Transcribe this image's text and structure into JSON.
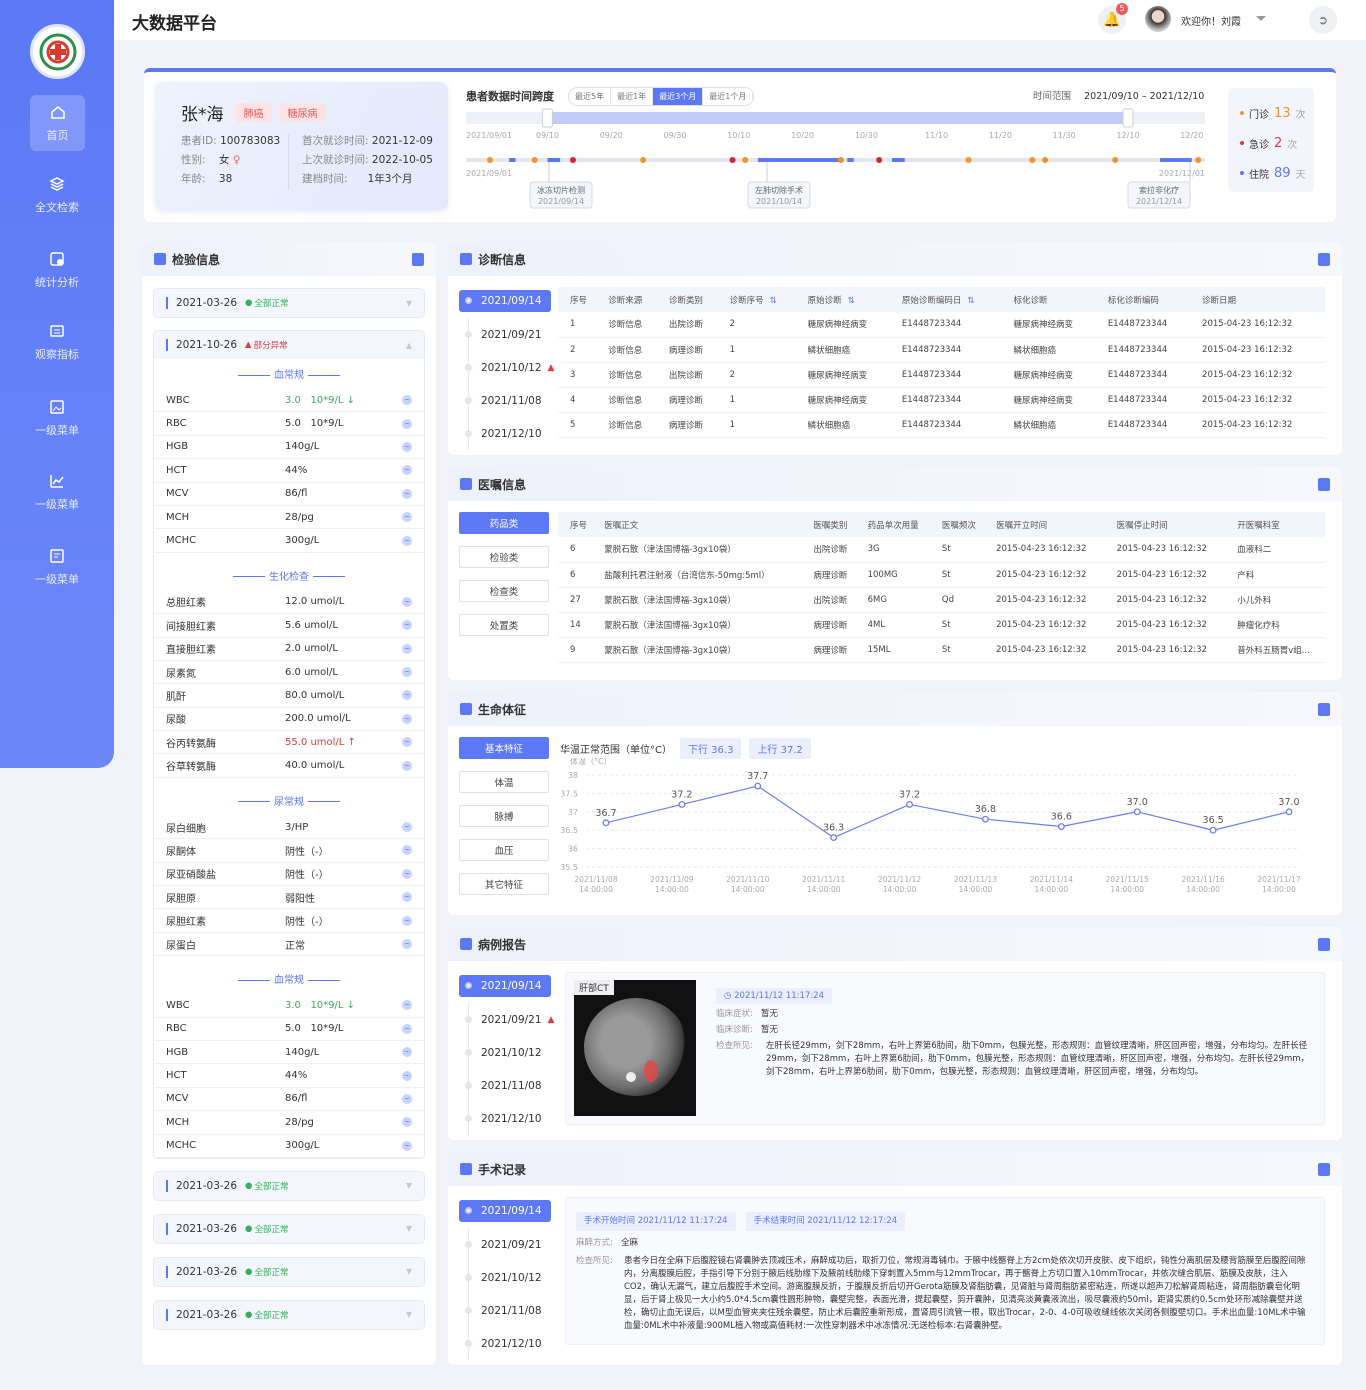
{
  "app": {
    "title": "大数据平台"
  },
  "header": {
    "notif_count": "5",
    "welcome": "欢迎你！刘霞"
  },
  "sidebar": {
    "items": [
      {
        "label": "首页",
        "icon": "home-icon"
      },
      {
        "label": "全文检索",
        "icon": "layers-icon"
      },
      {
        "label": "统计分析",
        "icon": "analysis-icon"
      },
      {
        "label": "观察指标",
        "icon": "monitor-icon"
      },
      {
        "label": "一级菜单",
        "icon": "image-icon"
      },
      {
        "label": "一级菜单",
        "icon": "chart-icon"
      },
      {
        "label": "一级菜单",
        "icon": "report-icon"
      }
    ]
  },
  "patient": {
    "name": "张*海",
    "tags": [
      "肺癌",
      "糖尿病"
    ],
    "id_label": "患者ID:",
    "id": "100783083",
    "gender_label": "性别:",
    "gender": "女",
    "age_label": "年龄:",
    "age": "38",
    "first_label": "首次就诊时间:",
    "first": "2021-12-09",
    "last_label": "上次就诊时间:",
    "last": "2022-10-05",
    "file_label": "建档时间:",
    "file": "1年3个月"
  },
  "timespan": {
    "title": "患者数据时间跨度",
    "ranges": [
      "最近5年",
      "最近1年",
      "最近3个月",
      "最近1个月"
    ],
    "active_range": 2,
    "range_label": "时间范围",
    "range_value": "2021/09/10 – 2021/12/10",
    "ticks": [
      "2021/09/01",
      "09/10",
      "09/20",
      "09/30",
      "10/10",
      "10/20",
      "10/30",
      "11/10",
      "11/20",
      "11/30",
      "12/10",
      "12/20"
    ],
    "start_label": "2021/09/01",
    "end_label": "2021/12/01",
    "events": [
      {
        "type": "outpatient",
        "date": "09/01"
      },
      {
        "type": "inpatient",
        "date": "09/04",
        "end": "09/05"
      },
      {
        "type": "outpatient",
        "date": "09/08"
      },
      {
        "type": "inpatient",
        "date": "09/10",
        "end": "09/12"
      },
      {
        "type": "emergency",
        "date": "09/14"
      },
      {
        "type": "outpatient",
        "date": "09/25"
      },
      {
        "type": "emergency",
        "date": "10/09"
      },
      {
        "type": "outpatient",
        "date": "10/11"
      },
      {
        "type": "inpatient",
        "date": "10/13",
        "end": "10/26"
      },
      {
        "type": "outpatient",
        "date": "10/26"
      },
      {
        "type": "inpatient",
        "date": "10/27",
        "end": "10/28"
      },
      {
        "type": "emergency",
        "date": "11/01"
      },
      {
        "type": "inpatient",
        "date": "11/03",
        "end": "11/05"
      },
      {
        "type": "outpatient",
        "date": "11/15"
      },
      {
        "type": "outpatient",
        "date": "11/25"
      },
      {
        "type": "outpatient",
        "date": "11/27"
      },
      {
        "type": "outpatient",
        "date": "12/08"
      },
      {
        "type": "inpatient",
        "date": "12/15",
        "end": "12/20"
      },
      {
        "type": "outpatient",
        "date": "12/21"
      }
    ],
    "callouts": [
      {
        "title": "冰冻切片检测",
        "date": "2021/09/14"
      },
      {
        "title": "左肺切除手术",
        "date": "2021/10/14"
      },
      {
        "title": "索拉非化疗",
        "date": "2021/12/14"
      }
    ],
    "colors": {
      "outpatient": "#f5922f",
      "emergency": "#d9232d",
      "inpatient": "#5c78f5"
    }
  },
  "stats": [
    {
      "label": "门诊",
      "value": "13",
      "unit": "次",
      "color": "#f5922f"
    },
    {
      "label": "急诊",
      "value": "2",
      "unit": "次",
      "color": "#e0393e"
    },
    {
      "label": "住院",
      "value": "89",
      "unit": "天",
      "color": "#5c78f5"
    }
  ],
  "lab": {
    "title": "检验信息",
    "groups_top": [
      {
        "date": "2021-03-26",
        "status": "全部正常"
      }
    ],
    "expanded": {
      "date": "2021-10-26",
      "status": "部分异常",
      "sections": [
        {
          "name": "血常规",
          "rows": [
            [
              "WBC",
              "3.0   10*9/L",
              "down"
            ],
            [
              "RBC",
              "5.0   10*9/L",
              ""
            ],
            [
              "HGB",
              "140g/L",
              ""
            ],
            [
              "HCT",
              "44%",
              ""
            ],
            [
              "MCV",
              "86/fl",
              ""
            ],
            [
              "MCH",
              "28/pg",
              ""
            ],
            [
              "MCHC",
              "300g/L",
              ""
            ]
          ]
        },
        {
          "name": "生化检查",
          "rows": [
            [
              "总胆红素",
              "12.0 umol/L",
              ""
            ],
            [
              "间接胆红素",
              "5.6 umol/L",
              ""
            ],
            [
              "直接胆红素",
              "2.0 umol/L",
              ""
            ],
            [
              "尿素氮",
              "6.0 umol/L",
              ""
            ],
            [
              "肌酐",
              "80.0 umol/L",
              ""
            ],
            [
              "尿酸",
              "200.0 umol/L",
              ""
            ],
            [
              "谷丙转氨酶",
              "55.0 umol/L",
              "up"
            ],
            [
              "谷草转氨酶",
              "40.0 umol/L",
              ""
            ]
          ]
        },
        {
          "name": "尿常规",
          "rows": [
            [
              "尿白细胞",
              "3/HP",
              ""
            ],
            [
              "尿酮体",
              "阴性（-）",
              ""
            ],
            [
              "尿亚硝酸盐",
              "阴性（-）",
              ""
            ],
            [
              "尿胆原",
              "弱阳性",
              ""
            ],
            [
              "尿胆红素",
              "阴性（-）",
              ""
            ],
            [
              "尿蛋白",
              "正常",
              ""
            ]
          ]
        },
        {
          "name": "血常规",
          "rows": [
            [
              "WBC",
              "3.0   10*9/L",
              "down"
            ],
            [
              "RBC",
              "5.0   10*9/L",
              ""
            ],
            [
              "HGB",
              "140g/L",
              ""
            ],
            [
              "HCT",
              "44%",
              ""
            ],
            [
              "MCV",
              "86/fl",
              ""
            ],
            [
              "MCH",
              "28/pg",
              ""
            ],
            [
              "MCHC",
              "300g/L",
              ""
            ]
          ]
        }
      ]
    },
    "groups_bottom": [
      {
        "date": "2021-03-26",
        "status": "全部正常"
      },
      {
        "date": "2021-03-26",
        "status": "全部正常"
      },
      {
        "date": "2021-03-26",
        "status": "全部正常"
      },
      {
        "date": "2021-03-26",
        "status": "全部正常"
      }
    ]
  },
  "diagnosis": {
    "title": "诊断信息",
    "dates": [
      "2021/09/14",
      "2021/09/21",
      "2021/10/12",
      "2021/11/08",
      "2021/12/10"
    ],
    "warn_index": 2,
    "columns": [
      "序号",
      "诊断来源",
      "诊断类别",
      "诊断序号",
      "原始诊断",
      "原始诊断编码日",
      "标化诊断",
      "标化诊断编码",
      "诊断日期"
    ],
    "rows": [
      [
        "1",
        "诊断信息",
        "出院诊断",
        "2",
        "糖尿病神经病变",
        "E1448723344",
        "糖尿病神经病变",
        "E1448723344",
        "2015-04-23  16:12:32"
      ],
      [
        "2",
        "诊断信息",
        "病理诊断",
        "1",
        "鳞状细胞癌",
        "E1448723344",
        "鳞状细胞癌",
        "E1448723344",
        "2015-04-23  16:12:32"
      ],
      [
        "3",
        "诊断信息",
        "出院诊断",
        "2",
        "糖尿病神经病变",
        "E1448723344",
        "糖尿病神经病变",
        "E1448723344",
        "2015-04-23  16:12:32"
      ],
      [
        "4",
        "诊断信息",
        "病理诊断",
        "1",
        "糖尿病神经病变",
        "E1448723344",
        "糖尿病神经病变",
        "E1448723344",
        "2015-04-23  16:12:32"
      ],
      [
        "5",
        "诊断信息",
        "病理诊断",
        "1",
        "鳞状细胞癌",
        "E1448723344",
        "鳞状细胞癌",
        "E1448723344",
        "2015-04-23  16:12:32"
      ]
    ]
  },
  "orders": {
    "title": "医嘱信息",
    "categories": [
      "药品类",
      "检验类",
      "检查类",
      "处置类"
    ],
    "columns": [
      "序号",
      "医嘱正文",
      "医嘱类别",
      "药品单次用量",
      "医嘱频次",
      "医嘱开立时间",
      "医嘱停止时间",
      "开医嘱科室"
    ],
    "rows": [
      [
        "6",
        "蒙脱石散（津法国博福-3gx10袋）",
        "出院诊断",
        "3G",
        "St",
        "2015-04-23  16:12:32",
        "2015-04-23  16:12:32",
        "血液科二"
      ],
      [
        "6",
        "盐酸利托君注射液（台湾信东-50mg:5ml）",
        "病理诊断",
        "100MG",
        "St",
        "2015-04-23  16:12:32",
        "2015-04-23  16:12:32",
        "产科"
      ],
      [
        "27",
        "蒙脱石散（津法国博福-3gx10袋）",
        "出院诊断",
        "6MG",
        "Qd",
        "2015-04-23  16:12:32",
        "2015-04-23  16:12:32",
        "小儿外科"
      ],
      [
        "14",
        "蒙脱石散（津法国博福-3gx10袋）",
        "病理诊断",
        "4ML",
        "St",
        "2015-04-23  16:12:32",
        "2015-04-23  16:12:32",
        "肿瘤化疗科"
      ],
      [
        "9",
        "蒙脱石散（津法国博福-3gx10袋）",
        "病理诊断",
        "15ML",
        "St",
        "2015-04-23  16:12:32",
        "2015-04-23  16:12:32",
        "普外科五肠胃v组..."
      ]
    ]
  },
  "vitals": {
    "title": "生命体征",
    "categories": [
      "基本特征",
      "体温",
      "脉搏",
      "血压",
      "其它特征"
    ],
    "range_label": "华温正常范围（单位°C）",
    "low": "下行  36.3",
    "high": "上行  37.2"
  },
  "chart_data": {
    "type": "line",
    "ylabel": "体温（°C）",
    "ylim": [
      35.5,
      38
    ],
    "yticks": [
      "38",
      "37.5",
      "37",
      "36.5",
      "36",
      "35.5"
    ],
    "grid": true,
    "x": [
      "2021/11/08 14:00:00",
      "2021/11/09 14:00:00",
      "2021/11/10 14:00:00",
      "2021/11/11 14:00:00",
      "2021/11/12 14:00:00",
      "2021/11/13 14:00:00",
      "2021/11/14 14:00:00",
      "2021/11/15 14:00:00",
      "2021/11/16 14:00:00",
      "2021/11/17 14:00:00"
    ],
    "values": [
      36.7,
      37.2,
      37.7,
      36.3,
      37.2,
      36.8,
      36.6,
      37.0,
      36.5,
      37.0
    ],
    "labels": [
      "36.7",
      "37.2",
      "37.7",
      "36.3",
      "37.2",
      "36.8",
      "36.6",
      "37.0",
      "36.5",
      "37.0"
    ],
    "color": "#6b7ff0"
  },
  "case": {
    "title": "病例报告",
    "dates": [
      "2021/09/14",
      "2021/09/21",
      "2021/10/12",
      "2021/11/08",
      "2021/12/10"
    ],
    "warn_index": 1,
    "image_label": "肝部CT",
    "time": "2021/11/12    11:17:24",
    "symptom_label": "临床症状:",
    "symptom": "暂无",
    "diag_label": "临床诊断:",
    "diag": "暂无",
    "finding_label": "检查所见:",
    "finding": "左肝长径29mm，剑下28mm，右叶上界第6肋间，肋下0mm，包膜光整，形态规则：血管纹理清晰，肝区回声密，增强，分布均匀。左肝长径29mm，剑下28mm，右叶上界第6肋间，肋下0mm，包膜光整，形态规则：血管纹理清晰，肝区回声密，增强，分布均匀。左肝长径29mm，剑下28mm，右叶上界第6肋间，肋下0mm，包膜光整，形态规则：血管纹理清晰，肝区回声密，增强，分布均匀。"
  },
  "surgery": {
    "title": "手术记录",
    "dates": [
      "2021/09/14",
      "2021/09/21",
      "2021/10/12",
      "2021/11/08",
      "2021/12/10"
    ],
    "start": "手术开始时间    2021/11/12    11:17:24",
    "end": "手术结束时间    2021/11/12    12:17:24",
    "anesthesia_label": "麻醉方式:",
    "anesthesia": "全麻",
    "finding_label": "检查所见:",
    "finding": "患者今日在全麻下后腹腔镜右肾囊肿去顶减压术，麻醉成功后，取折刀位，常规消毒铺巾。于腋中线髂脊上方2cm处依次切开皮肤、皮下组织，钝性分离肌层及腰背筋膜至后腹腔间隙内，分离腹膜后腔，手指引导下分别于腋后线肋缘下及腋前线肋缘下穿刺置入5mm与12mmTrocar，再于髂脊上方切口置入10mmTrocar，并依次缝合肌层、筋膜及皮肤，注入CO2，确认无漏气，建立后腹腔手术空间。游离腹膜反折，于腹膜反折后切开Gerota筋膜及肾脂肪囊，见肾脏与肾周脂肪紧密粘连，所遂以超声刀松解肾周粘连，肾周脂肪囊皂化明显，后于肾上极见一大小约5.0*4.5cm囊性圆形肿物，囊壁完整，表面光滑，提起囊壁，剪开囊肿，见清亮淡黄囊液流出，吸尽囊液约50ml，距肾实质约0.5cm处环形减除囊壁并送检，确切止血无误后，以M型血管夹夹住残余囊壁，防止术后囊腔重新形成，置肾周引流管一根，取出Trocar，2-0、4-0可吸收缝线依次关闭各侧腹壁切口。手术出血量:10ML术中输血量:0ML术中补液量:900ML植入物或高值耗材:一次性穿刺器术中冰冻情况:无送检标本:右肾囊肿壁。"
  }
}
